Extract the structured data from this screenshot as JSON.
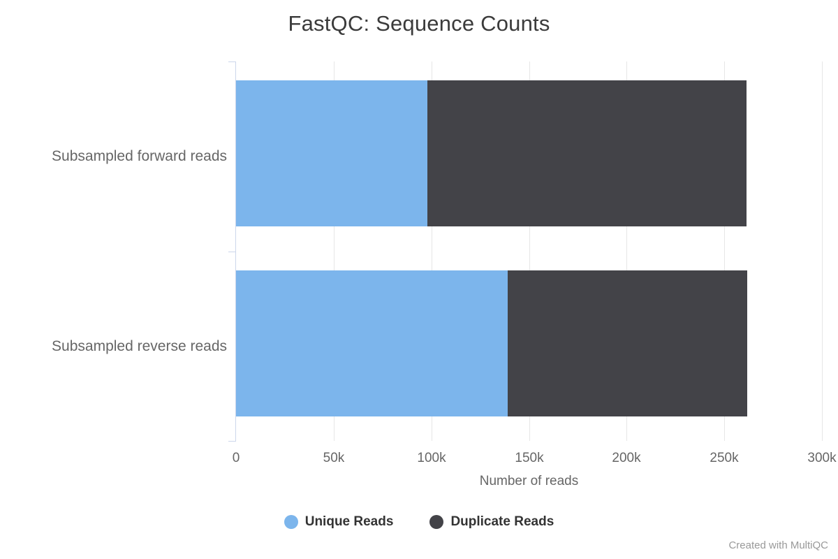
{
  "credit": "Created with MultiQC",
  "colors": {
    "grid": "#e6e6e6",
    "category_axis": "#ccd6eb",
    "axis_text": "#666666",
    "title_text": "#3b3b3b",
    "legend_text": "#333333",
    "credit_text": "#999999"
  },
  "chart_data": {
    "type": "bar",
    "orientation": "horizontal",
    "stacked": true,
    "title": "FastQC: Sequence Counts",
    "xlabel": "Number of reads",
    "categories": [
      "Subsampled forward reads",
      "Subsampled reverse reads"
    ],
    "series": [
      {
        "name": "Unique Reads",
        "color": "#7cb5ec",
        "values": [
          98000,
          139000
        ]
      },
      {
        "name": "Duplicate Reads",
        "color": "#434348",
        "values": [
          163500,
          122500
        ]
      }
    ],
    "totals": [
      261500,
      261500
    ],
    "xlim": [
      0,
      300000
    ],
    "x_ticks": [
      {
        "value": 0,
        "label": "0"
      },
      {
        "value": 50000,
        "label": "50k"
      },
      {
        "value": 100000,
        "label": "100k"
      },
      {
        "value": 150000,
        "label": "150k"
      },
      {
        "value": 200000,
        "label": "200k"
      },
      {
        "value": 250000,
        "label": "250k"
      },
      {
        "value": 300000,
        "label": "300k"
      }
    ],
    "grid": true,
    "legend_position": "bottom"
  }
}
